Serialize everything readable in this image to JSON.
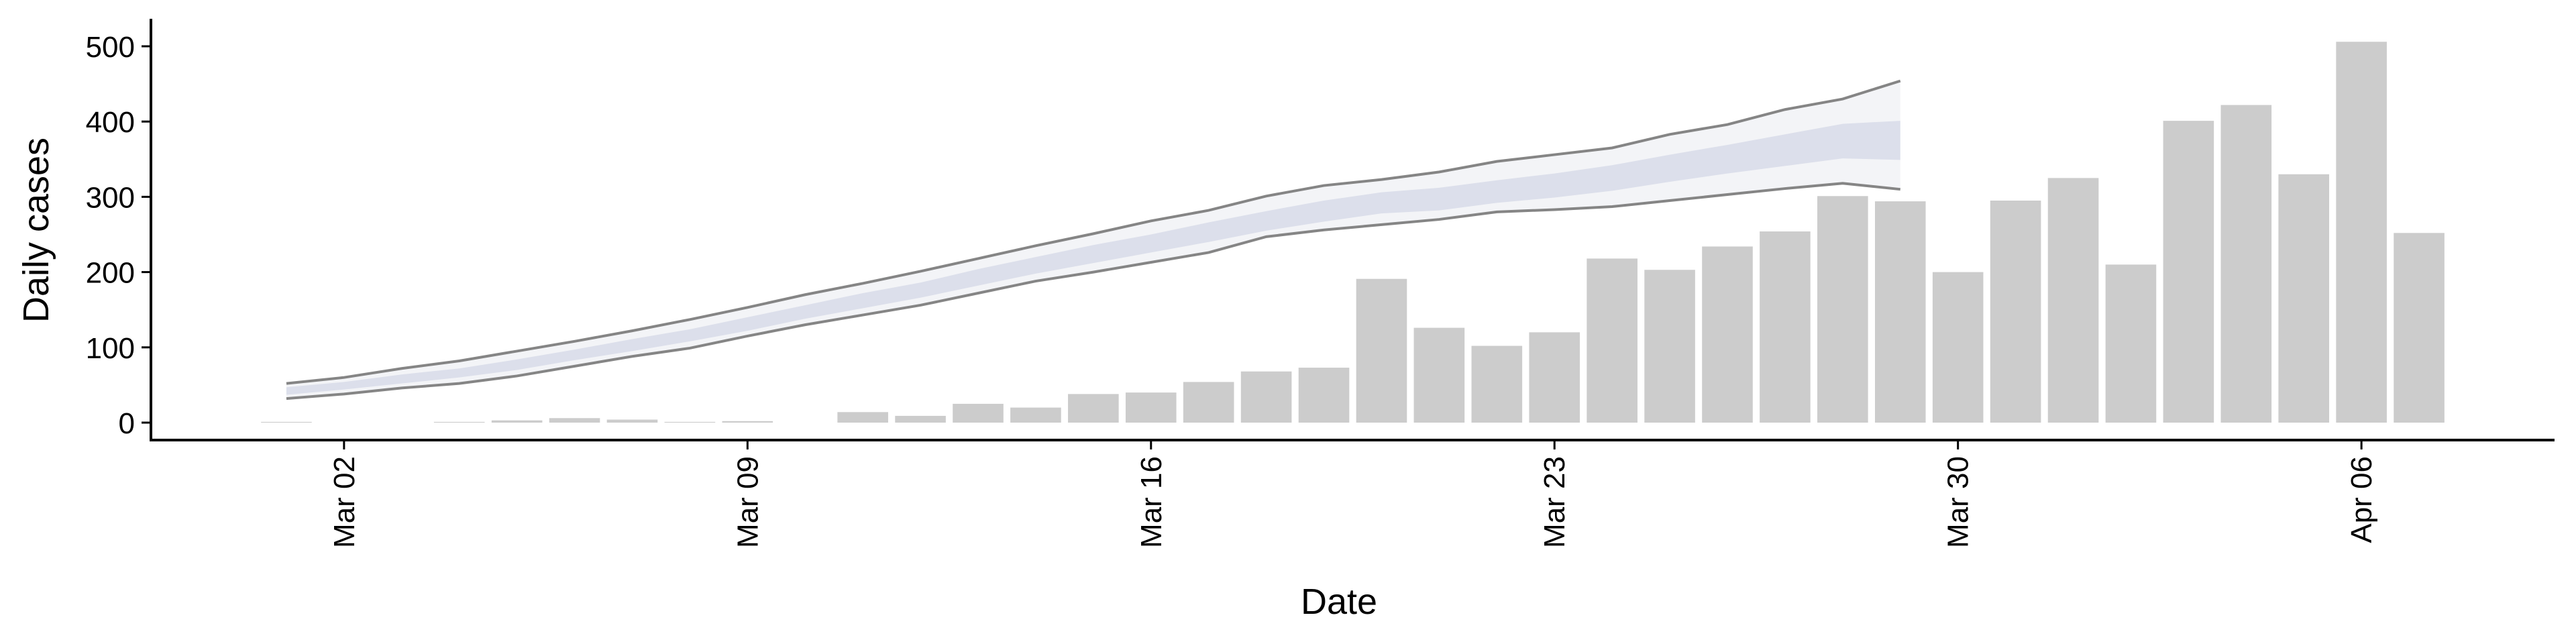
{
  "chart_data": {
    "type": "bar",
    "x_label": "Date",
    "y_label": "Daily cases",
    "x": [
      "03-01",
      "03-02",
      "03-03",
      "03-04",
      "03-05",
      "03-06",
      "03-07",
      "03-08",
      "03-09",
      "03-10",
      "03-11",
      "03-12",
      "03-13",
      "03-14",
      "03-15",
      "03-16",
      "03-17",
      "03-18",
      "03-19",
      "03-20",
      "03-21",
      "03-22",
      "03-23",
      "03-24",
      "03-25",
      "03-26",
      "03-27",
      "03-28",
      "03-29",
      "03-30",
      "03-31",
      "04-01",
      "04-02",
      "04-03",
      "04-04",
      "04-05",
      "04-06",
      "04-07"
    ],
    "values": [
      1,
      0,
      0,
      1,
      3,
      6,
      4,
      1,
      2,
      0,
      14,
      9,
      25,
      20,
      38,
      40,
      54,
      68,
      73,
      191,
      126,
      102,
      120,
      218,
      203,
      234,
      254,
      301,
      294,
      200,
      295,
      325,
      210,
      401,
      422,
      330,
      506,
      252
    ],
    "color": "#cccccc",
    "forecast": {
      "x": [
        "03-01",
        "03-02",
        "03-03",
        "03-04",
        "03-05",
        "03-06",
        "03-07",
        "03-08",
        "03-09",
        "03-10",
        "03-11",
        "03-12",
        "03-13",
        "03-14",
        "03-15",
        "03-16",
        "03-17",
        "03-18",
        "03-19",
        "03-20",
        "03-21",
        "03-22",
        "03-23",
        "03-24",
        "03-25",
        "03-26",
        "03-27",
        "03-28",
        "03-29"
      ],
      "outer_lower": [
        32,
        38,
        46,
        52,
        62,
        75,
        88,
        99,
        115,
        130,
        143,
        156,
        172,
        188,
        200,
        213,
        226,
        247,
        256,
        263,
        270,
        280,
        283,
        287,
        295,
        303,
        311,
        318,
        310
      ],
      "outer_upper": [
        52,
        60,
        72,
        82,
        95,
        108,
        122,
        137,
        153,
        170,
        185,
        201,
        218,
        235,
        251,
        268,
        282,
        301,
        315,
        323,
        333,
        347,
        356,
        365,
        383,
        396,
        416,
        430,
        454
      ],
      "inner_lower": [
        37,
        44,
        52,
        60,
        70,
        83,
        95,
        108,
        122,
        138,
        152,
        166,
        182,
        198,
        212,
        226,
        240,
        255,
        267,
        278,
        282,
        292,
        299,
        308,
        320,
        331,
        341,
        351,
        349
      ],
      "inner_upper": [
        47,
        54,
        64,
        72,
        84,
        97,
        111,
        124,
        140,
        156,
        172,
        186,
        204,
        220,
        236,
        250,
        266,
        281,
        295,
        306,
        312,
        322,
        331,
        342,
        356,
        369,
        383,
        397,
        401
      ],
      "outer_color": "#f0f1f5",
      "inner_color": "#d6d9e7",
      "line_color": "#858585"
    },
    "xticks": [
      {
        "value": "03-02",
        "label": "Mar 02"
      },
      {
        "value": "03-09",
        "label": "Mar 09"
      },
      {
        "value": "03-16",
        "label": "Mar 16"
      },
      {
        "value": "03-23",
        "label": "Mar 23"
      },
      {
        "value": "03-30",
        "label": "Mar 30"
      },
      {
        "value": "04-06",
        "label": "Apr 06"
      }
    ],
    "ylim": [
      0,
      500
    ],
    "yticks": [
      0,
      100,
      200,
      300,
      400,
      500
    ]
  }
}
